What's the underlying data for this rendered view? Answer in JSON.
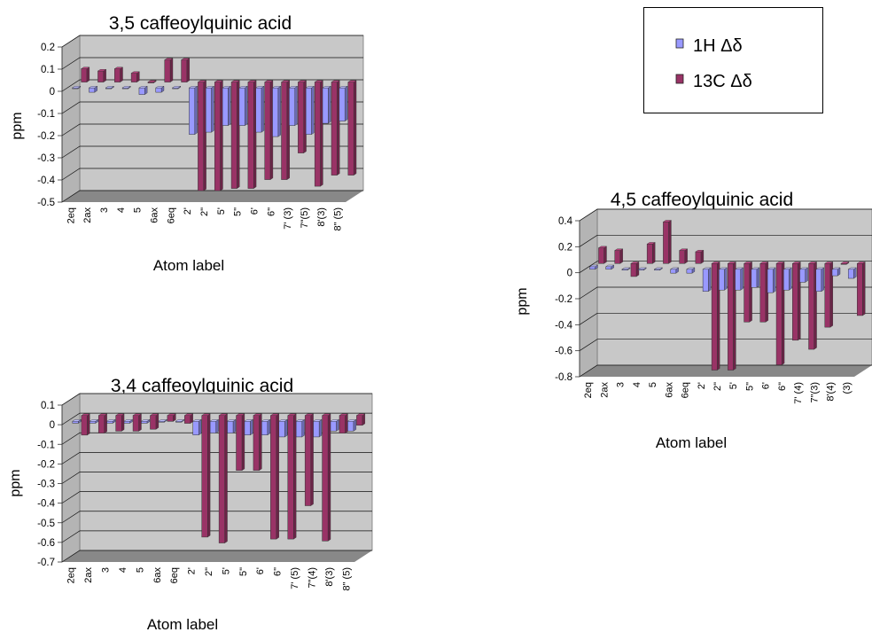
{
  "legend": {
    "items": [
      {
        "label": "1H Δδ",
        "color": "#9999ff"
      },
      {
        "label": "13C Δδ",
        "color": "#993366"
      }
    ]
  },
  "colors": {
    "wall": "#c8c8c8",
    "floor": "#888888",
    "h_bar": "#9999ff",
    "c_bar": "#993366"
  },
  "chart_data": [
    {
      "type": "bar",
      "title": "3,5 caffeoylquinic acid",
      "xlabel": "Atom label",
      "ylabel": "ppm",
      "ylim": [
        -0.5,
        0.2
      ],
      "yticks": [
        "0.2",
        "0.1",
        "0",
        "-0.1",
        "-0.2",
        "-0.3",
        "-0.4",
        "-0.5"
      ],
      "categories": [
        "2eq",
        "2ax",
        "3",
        "4",
        "5",
        "6ax",
        "6eq",
        "2'",
        "2\"",
        "5'",
        "5\"",
        "6'",
        "6\"",
        "7' (3)",
        "7\"(5)",
        "8'(3)",
        "8\" (5)"
      ],
      "series": [
        {
          "name": "1H Δδ",
          "values": [
            0.0,
            -0.02,
            0.0,
            0.0,
            -0.03,
            -0.02,
            0.0,
            -0.21,
            -0.2,
            -0.17,
            -0.17,
            -0.2,
            -0.22,
            -0.17,
            -0.21,
            -0.16,
            -0.15
          ]
        },
        {
          "name": "13C Δδ",
          "values": [
            0.06,
            0.05,
            0.06,
            0.04,
            0.0,
            0.1,
            0.1,
            -0.49,
            -0.49,
            -0.48,
            -0.48,
            -0.44,
            -0.44,
            -0.32,
            -0.47,
            -0.42,
            -0.42
          ]
        }
      ]
    },
    {
      "type": "bar",
      "title": "4,5 caffeoylquinic acid",
      "xlabel": "Atom label",
      "ylabel": "ppm",
      "ylim": [
        -0.8,
        0.4
      ],
      "yticks": [
        "0.4",
        "0.2",
        "0",
        "-0.2",
        "-0.4",
        "-0.6",
        "-0.8"
      ],
      "categories": [
        "2eq",
        "2ax",
        "3",
        "4",
        "5",
        "6ax",
        "6eq",
        "2'",
        "2\"",
        "5'",
        "5\"",
        "6'",
        "6\"",
        "7' (4)",
        "7\"(3)",
        "8'(4)",
        "(3)"
      ],
      "series": [
        {
          "name": "1H Δδ",
          "values": [
            0.02,
            0.02,
            0.0,
            0.0,
            0.0,
            -0.03,
            -0.03,
            -0.17,
            -0.16,
            -0.16,
            -0.14,
            -0.18,
            -0.16,
            -0.1,
            -0.17,
            -0.05,
            -0.07
          ]
        },
        {
          "name": "13C Δδ",
          "values": [
            0.12,
            0.1,
            -0.1,
            0.15,
            0.32,
            0.1,
            0.09,
            -0.82,
            -0.82,
            -0.45,
            -0.45,
            -0.78,
            -0.59,
            -0.66,
            -0.49,
            0.0,
            -0.4
          ]
        }
      ]
    },
    {
      "type": "bar",
      "title": "3,4 caffeoylquinic acid",
      "xlabel": "Atom label",
      "ylabel": "ppm",
      "ylim": [
        -0.7,
        0.1
      ],
      "yticks": [
        "0.1",
        "0",
        "-0.1",
        "-0.2",
        "-0.3",
        "-0.4",
        "-0.5",
        "-0.6",
        "-0.7"
      ],
      "categories": [
        "2eq",
        "2ax",
        "3",
        "4",
        "5",
        "6ax",
        "6eq",
        "2'",
        "2\"",
        "5'",
        "5\"",
        "6'",
        "6\"",
        "7' (5)",
        "7\"(4)",
        "8'(3)",
        "8\" (5)"
      ],
      "series": [
        {
          "name": "1H Δδ",
          "values": [
            -0.01,
            -0.01,
            -0.01,
            -0.01,
            -0.01,
            0.0,
            0.0,
            -0.07,
            -0.06,
            -0.06,
            -0.07,
            -0.07,
            -0.08,
            -0.08,
            -0.08,
            -0.05,
            -0.05
          ]
        },
        {
          "name": "13C Δδ",
          "values": [
            -0.1,
            -0.09,
            -0.08,
            -0.08,
            -0.07,
            -0.03,
            -0.04,
            -0.62,
            -0.65,
            -0.28,
            -0.28,
            -0.63,
            -0.63,
            -0.46,
            -0.64,
            -0.09,
            -0.05
          ]
        }
      ]
    }
  ]
}
